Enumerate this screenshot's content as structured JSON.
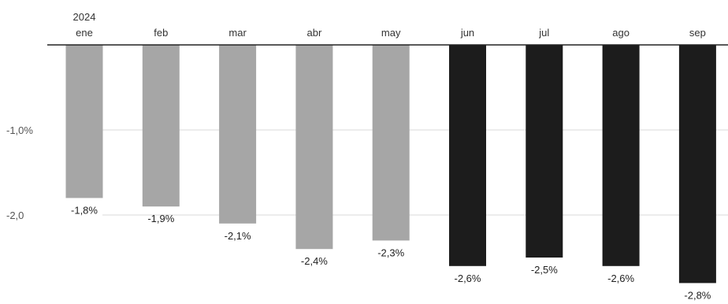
{
  "chart_data": {
    "type": "bar",
    "year_label": "2024",
    "categories": [
      "ene",
      "feb",
      "mar",
      "abr",
      "may",
      "jun",
      "jul",
      "ago",
      "sep"
    ],
    "values": [
      -1.8,
      -1.9,
      -2.1,
      -2.4,
      -2.3,
      -2.6,
      -2.5,
      -2.6,
      -2.8
    ],
    "value_labels": [
      "-1,8%",
      "-1,9%",
      "-2,1%",
      "-2,4%",
      "-2,3%",
      "-2,6%",
      "-2,5%",
      "-2,6%",
      "-2,8%"
    ],
    "y_ticks": [
      {
        "value": -1.0,
        "label": "-1,0%"
      },
      {
        "value": -2.0,
        "label": "-2,0"
      }
    ],
    "ylim": [
      -3.0,
      0
    ],
    "grid": true,
    "colors": {
      "light_bar": "#a6a6a6",
      "dark_bar": "#1c1c1c",
      "axis": "#222222",
      "grid": "#e6e6e6"
    },
    "dark_from_index": 5
  }
}
